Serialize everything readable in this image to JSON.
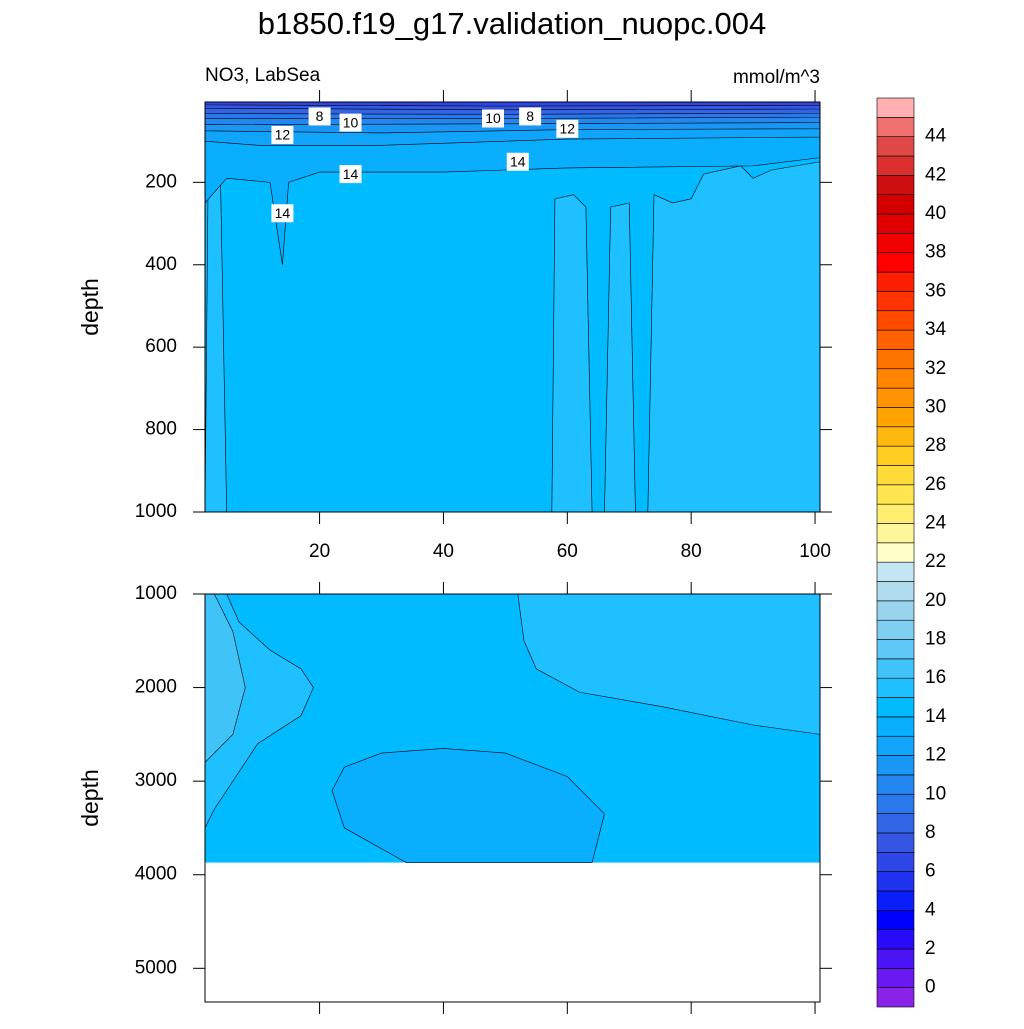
{
  "chart_data": [
    {
      "type": "contour",
      "title": "b1850.f19_g17.validation_nuopc.004",
      "left_label": "NO3, LabSea",
      "right_label": "mmol/m^3",
      "ylabel": "depth",
      "xlim": [
        1.5,
        100.8
      ],
      "xticks": [
        20,
        40,
        60,
        80,
        100
      ],
      "ylim": [
        5,
        1000
      ],
      "yticks": [
        200,
        400,
        600,
        800,
        1000
      ],
      "y_reversed": true,
      "base_level": 14,
      "fill_bottom": 1000,
      "regions": [
        {
          "level": 15,
          "x": [
            1.5,
            2,
            4,
            5
          ],
          "y": [
            1000,
            200,
            190,
            1000
          ]
        },
        {
          "level": 15,
          "x": [
            57.5,
            58,
            61,
            63,
            64
          ],
          "y": [
            1000,
            240,
            230,
            260,
            1000
          ]
        },
        {
          "level": 15,
          "x": [
            66,
            67,
            70,
            71
          ],
          "y": [
            1000,
            260,
            250,
            1000
          ]
        },
        {
          "level": 15,
          "x": [
            73,
            74,
            77,
            80,
            82,
            88,
            90,
            93,
            100.8,
            100.8
          ],
          "y": [
            1000,
            230,
            250,
            240,
            180,
            160,
            190,
            170,
            150,
            1000
          ]
        },
        {
          "level": 13,
          "x": [
            1.5,
            100.8,
            100.8,
            90,
            60,
            40,
            20,
            15,
            14,
            12,
            5,
            1.5
          ],
          "y": [
            5,
            5,
            140,
            160,
            165,
            175,
            175,
            200,
            400,
            200,
            190,
            250
          ]
        },
        {
          "level": 12,
          "x": [
            1.5,
            100.8,
            100.8,
            60,
            30,
            10,
            1.5
          ],
          "y": [
            5,
            5,
            90,
            95,
            110,
            110,
            100
          ]
        },
        {
          "level": 11,
          "x": [
            1.5,
            100.8,
            100.8,
            60,
            30,
            1.5
          ],
          "y": [
            5,
            5,
            70,
            72,
            80,
            75
          ]
        },
        {
          "level": 10,
          "x": [
            1.5,
            100.8,
            100.8,
            50,
            1.5
          ],
          "y": [
            5,
            5,
            55,
            58,
            60
          ]
        },
        {
          "level": 9,
          "x": [
            1.5,
            100.8,
            100.8,
            50,
            1.5
          ],
          "y": [
            5,
            5,
            42,
            45,
            45
          ]
        },
        {
          "level": 8,
          "x": [
            1.5,
            100.8,
            100.8,
            50,
            1.5
          ],
          "y": [
            5,
            5,
            32,
            35,
            33
          ]
        },
        {
          "level": 7,
          "x": [
            1.5,
            100.8,
            100.8,
            50,
            1.5
          ],
          "y": [
            5,
            5,
            22,
            24,
            20
          ]
        },
        {
          "level": 6,
          "x": [
            1.5,
            100.8,
            100.8,
            50,
            1.5
          ],
          "y": [
            5,
            5,
            13,
            15,
            12
          ]
        }
      ],
      "contour_labels": [
        {
          "x": 20,
          "y": 40,
          "label": 8
        },
        {
          "x": 25,
          "y": 55,
          "label": 10
        },
        {
          "x": 14,
          "y": 85,
          "label": 12
        },
        {
          "x": 25,
          "y": 180,
          "label": 14
        },
        {
          "x": 14,
          "y": 275,
          "label": 14
        },
        {
          "x": 48,
          "y": 45,
          "label": 10
        },
        {
          "x": 54,
          "y": 40,
          "label": 8
        },
        {
          "x": 60,
          "y": 70,
          "label": 12
        },
        {
          "x": 52,
          "y": 150,
          "label": 14
        }
      ],
      "colorbar": {
        "lim": [
          -1,
          46
        ],
        "ticks": [
          0,
          2,
          4,
          6,
          8,
          10,
          12,
          14,
          16,
          18,
          20,
          22,
          24,
          26,
          28,
          30,
          32,
          34,
          36,
          38,
          40,
          42,
          44
        ],
        "colors": [
          "#8B22E8",
          "#6A1AF0",
          "#4A14F5",
          "#2A0AFA",
          "#0000FF",
          "#0A1EFA",
          "#1E32F0",
          "#2E46E8",
          "#3556E0",
          "#3264E6",
          "#2A78EE",
          "#2288F0",
          "#1A96F5",
          "#10A4FA",
          "#0AAEFF",
          "#00BBFF",
          "#1EC0FF",
          "#40C4F8",
          "#60C8F4",
          "#80CEF0",
          "#98D4EE",
          "#B0DCF0",
          "#C4E6F4",
          "#FFFFC8",
          "#FFF59A",
          "#FFEE70",
          "#FFE650",
          "#FFDB3A",
          "#FFCC20",
          "#FFB810",
          "#FFA400",
          "#FF9400",
          "#FF8400",
          "#FF7400",
          "#FF6000",
          "#FF4A00",
          "#FF3400",
          "#FF1E00",
          "#FF0000",
          "#F00000",
          "#E00000",
          "#D40000",
          "#CC1010",
          "#DC3030",
          "#E04848",
          "#F07070",
          "#FFB0B0"
        ]
      }
    },
    {
      "type": "contour",
      "ylabel": "depth",
      "xlim": [
        1.5,
        100.8
      ],
      "xticks": [
        20,
        40,
        60,
        80,
        100
      ],
      "ylim": [
        1000,
        5360
      ],
      "yticks": [
        1000,
        2000,
        3000,
        4000,
        5000
      ],
      "y_reversed": true,
      "base_level": 14,
      "fill_bottom": 3870,
      "regions": [
        {
          "level": 15,
          "x": [
            1.5,
            5,
            7,
            12,
            17,
            19,
            17,
            10,
            3,
            1.5
          ],
          "y": [
            1000,
            1000,
            1300,
            1600,
            1800,
            2000,
            2300,
            2600,
            3300,
            3500
          ]
        },
        {
          "level": 16,
          "x": [
            1.5,
            3,
            6,
            8,
            6,
            1.5
          ],
          "y": [
            1000,
            1000,
            1400,
            2000,
            2500,
            2800
          ]
        },
        {
          "level": 15,
          "x": [
            55,
            100.8,
            100.8,
            90,
            75,
            62,
            55,
            53,
            52
          ],
          "y": [
            1000,
            1000,
            2500,
            2400,
            2200,
            2050,
            1800,
            1500,
            1000
          ]
        },
        {
          "level": 13,
          "x": [
            22,
            24,
            30,
            40,
            50,
            60,
            66,
            64,
            34,
            24
          ],
          "y": [
            3100,
            2850,
            2700,
            2650,
            2700,
            2950,
            3350,
            3870,
            3870,
            3500
          ]
        }
      ],
      "contour_labels": []
    }
  ]
}
